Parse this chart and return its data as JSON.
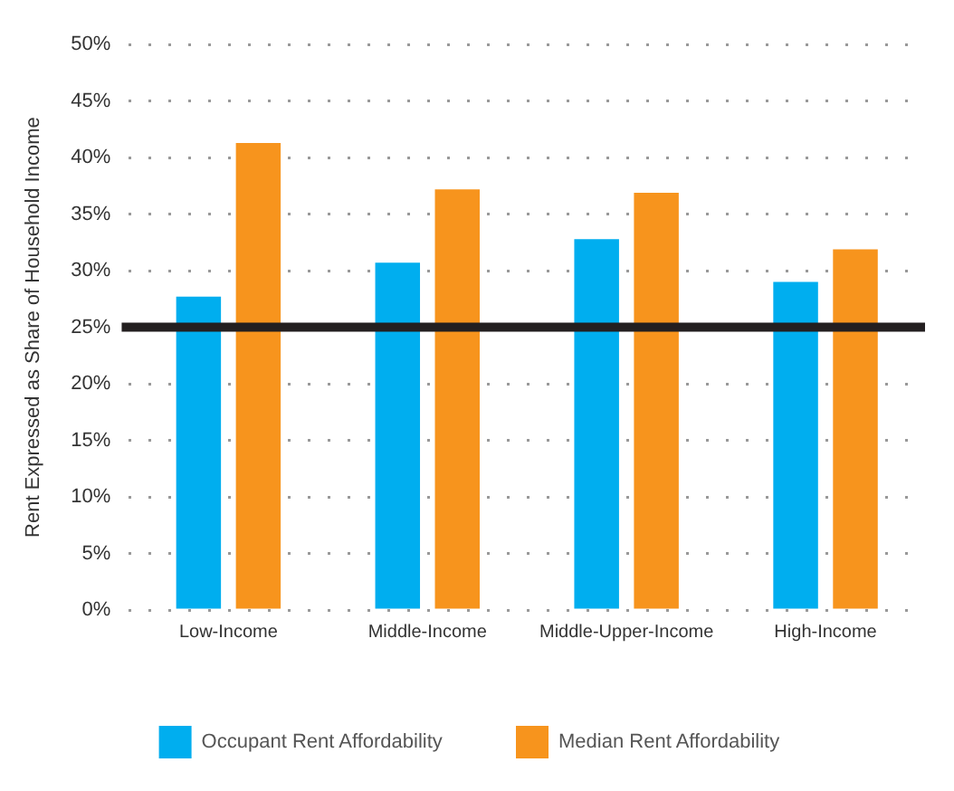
{
  "chart_data": {
    "type": "bar",
    "ylabel": "Rent Expressed as Share of Household Income",
    "categories": [
      "Low-Income",
      "Middle-Income",
      "Middle-Upper-Income",
      "High-Income"
    ],
    "series": [
      {
        "name": "Occupant Rent Affordability",
        "color": "#00aeef",
        "values": [
          27.7,
          30.7,
          32.8,
          29.0
        ]
      },
      {
        "name": "Median Rent Affordability",
        "color": "#f7941d",
        "values": [
          41.3,
          37.2,
          36.9,
          31.9
        ]
      }
    ],
    "ylim": [
      0,
      50
    ],
    "yticks": [
      {
        "value": 0,
        "label": "0%"
      },
      {
        "value": 5,
        "label": "5%"
      },
      {
        "value": 10,
        "label": "10%"
      },
      {
        "value": 15,
        "label": "15%"
      },
      {
        "value": 20,
        "label": "20%"
      },
      {
        "value": 25,
        "label": "25%"
      },
      {
        "value": 30,
        "label": "30%"
      },
      {
        "value": 35,
        "label": "35%"
      },
      {
        "value": 40,
        "label": "40%"
      },
      {
        "value": 45,
        "label": "45%"
      },
      {
        "value": 50,
        "label": "50%"
      }
    ],
    "ref_lines": [
      {
        "axis": "y",
        "value": 25,
        "color": "#231f20"
      }
    ],
    "grid": "y",
    "legend": "bottom"
  }
}
